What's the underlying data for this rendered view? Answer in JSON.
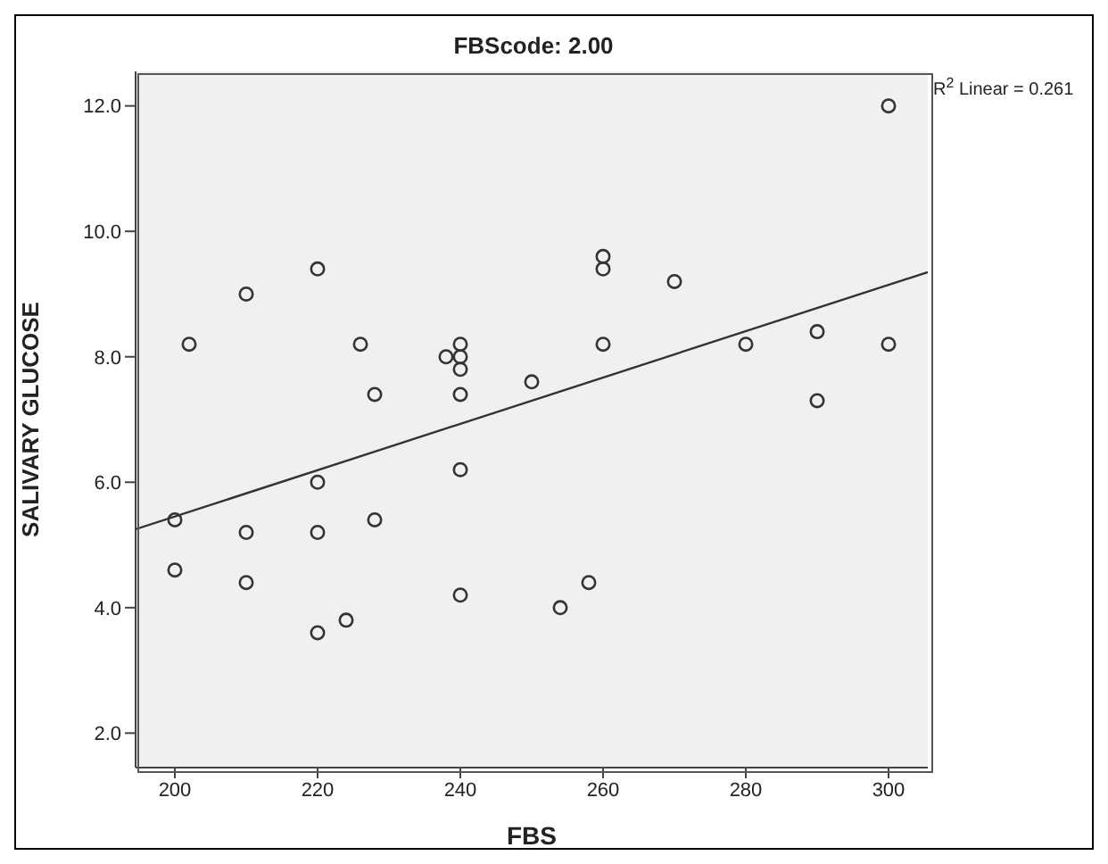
{
  "chart_data": {
    "type": "scatter",
    "title": "FBScode: 2.00",
    "xlabel": "FBS",
    "ylabel": "SALIVARY GLUCOSE",
    "annotations": [
      "R$^{2}$ Linear = 0.261"
    ],
    "xlim": [
      194.5,
      305.5
    ],
    "xticks": [
      200,
      220,
      240,
      260,
      280,
      300
    ],
    "ylim": [
      1.45,
      12.55
    ],
    "yticks": [
      {
        "value": 2,
        "label": "2.0"
      },
      {
        "value": 4,
        "label": "4.0"
      },
      {
        "value": 6,
        "label": "6.0"
      },
      {
        "value": 8,
        "label": "8.0"
      },
      {
        "value": 10,
        "label": "10.0"
      },
      {
        "value": 12,
        "label": "12.0"
      }
    ],
    "grid": false,
    "legend": false,
    "series": [
      {
        "marker": "circle",
        "color": "#333333",
        "x": [
          200,
          200,
          202,
          210,
          210,
          210,
          220,
          220,
          220,
          220,
          224,
          226,
          228,
          228,
          238,
          240,
          240,
          240,
          240,
          240,
          240,
          250,
          254,
          258,
          260,
          260,
          260,
          270,
          280,
          290,
          290,
          300,
          300
        ],
        "values": [
          5.4,
          4.6,
          8.2,
          9.0,
          5.2,
          4.4,
          9.4,
          6.0,
          5.2,
          3.6,
          3.8,
          8.2,
          7.4,
          5.4,
          8.0,
          8.2,
          8.0,
          7.8,
          7.4,
          6.2,
          4.2,
          7.6,
          4.0,
          4.4,
          9.6,
          9.4,
          8.2,
          9.2,
          8.2,
          8.4,
          7.3,
          12.0,
          8.2
        ]
      },
      {
        "type": "line",
        "marker": "none",
        "color": "#333333",
        "x": [
          194.5,
          305.5
        ],
        "values": [
          5.25,
          9.35
        ]
      }
    ]
  }
}
